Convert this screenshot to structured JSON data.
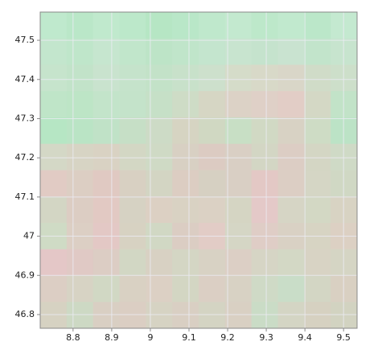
{
  "chart_data": {
    "type": "raster",
    "xlim": [
      8.715,
      9.535
    ],
    "ylim": [
      46.765,
      47.572
    ],
    "xticks": [
      8.8,
      8.9,
      9,
      9.1,
      9.2,
      9.3,
      9.4,
      9.5
    ],
    "yticks": [
      46.8,
      46.9,
      47,
      47.1,
      47.2,
      47.3,
      47.4,
      47.5
    ],
    "grid": true,
    "grid_color": "#ececf4",
    "frame_color": "#888888",
    "cells": [
      [
        "#bfe9cd",
        "#bae7c8",
        "#c0e9cd",
        "#bce8ca",
        "#b6e6c4",
        "#b9e7c8",
        "#bfe8cc",
        "#c3e9cf",
        "#bde8ca",
        "#c1e9ce",
        "#bbe7c9",
        "#c4e9d0"
      ],
      [
        "#c3e6cd",
        "#bfe6ca",
        "#c6e6cf",
        "#c1e6cb",
        "#bde4c7",
        "#c0e5ca",
        "#c4e5ce",
        "#c8e4cf",
        "#c5e3cd",
        "#c9e3d0",
        "#c2e4cb",
        "#c7e4ce"
      ],
      [
        "#c6e4cc",
        "#c2e3c9",
        "#c9e3ce",
        "#c5e3cb",
        "#c3e2c8",
        "#c8e1ca",
        "#cde0cc",
        "#d5dcc9",
        "#d8d9c8",
        "#d9d6c8",
        "#d0dcc8",
        "#cddfca"
      ],
      [
        "#bfe5c8",
        "#bde5c6",
        "#c3e4ca",
        "#c4e3ca",
        "#c6e0c7",
        "#cedcc6",
        "#d6d6c4",
        "#dcd2c6",
        "#dfd0c7",
        "#e2cdc6",
        "#d4d8c5",
        "#c2e3c8"
      ],
      [
        "#b6e6c4",
        "#bae4c5",
        "#c0e2c7",
        "#c6dfc6",
        "#cddbc6",
        "#d6d4c2",
        "#d0d8c2",
        "#c8dfc5",
        "#d1d9c4",
        "#d8d2c4",
        "#cedcc5",
        "#bce3c6"
      ],
      [
        "#d4d8c6",
        "#d7d4c4",
        "#d9d2c3",
        "#d3d7c4",
        "#cfdac5",
        "#d8d0c3",
        "#dccbc2",
        "#d9cfc4",
        "#d3d6c4",
        "#dccdc4",
        "#d4d6c4",
        "#cfdac6"
      ],
      [
        "#e1cbc4",
        "#dccec3",
        "#e0c9c2",
        "#d8d0c2",
        "#d3d5c3",
        "#dccdc2",
        "#d6d0c2",
        "#d9cfc4",
        "#e3c8c5",
        "#dccec4",
        "#d5d6c5",
        "#d0d8c4"
      ],
      [
        "#d3d6c4",
        "#dccdc3",
        "#e2c9c3",
        "#d6d2c3",
        "#dcd0c3",
        "#d9d2c3",
        "#dbd1c4",
        "#d5d5c3",
        "#e4c9c8",
        "#d6d5c5",
        "#d3d8c4",
        "#d8d3c3"
      ],
      [
        "#cfdbc5",
        "#dccfc4",
        "#e3c8c5",
        "#d7d2c2",
        "#d1d8c4",
        "#dbcdc3",
        "#e2ccc6",
        "#d5d6c5",
        "#dfcdc6",
        "#d9d1c4",
        "#d7d4c3",
        "#dcd0c3"
      ],
      [
        "#e4c7c7",
        "#e0c9c5",
        "#dccdc4",
        "#d2d7c4",
        "#d8d1c3",
        "#d4d6c4",
        "#d8d2c4",
        "#dccfc5",
        "#d6d5c5",
        "#d3d8c5",
        "#d8d3c4",
        "#d5d5c4"
      ],
      [
        "#dccec4",
        "#d7d3c4",
        "#d1d8c4",
        "#d9d1c3",
        "#dcd0c4",
        "#d3d6c3",
        "#dbcfc4",
        "#d8d2c4",
        "#cfdac6",
        "#c9ddc8",
        "#d3d6c4",
        "#d9d0c2"
      ],
      [
        "#d6d2c2",
        "#cdd9c4",
        "#d9cfc3",
        "#dbcec3",
        "#d6d3c3",
        "#d9cfc3",
        "#d4d4c3",
        "#d9d0c3",
        "#cadcc6",
        "#d4d5c4",
        "#d6d1c1",
        "#d2d3c1"
      ]
    ]
  }
}
